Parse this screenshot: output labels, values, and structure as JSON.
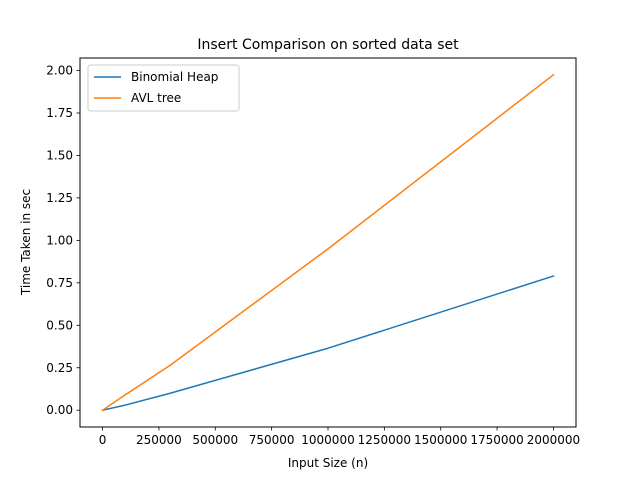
{
  "chart_data": {
    "type": "line",
    "title": "Insert Comparison on sorted data set",
    "xlabel": "Input Size (n)",
    "ylabel": "Time Taken in sec",
    "xlim": [
      -100000,
      2100000
    ],
    "ylim": [
      -0.0988,
      2.0737
    ],
    "x_ticks": [
      0,
      250000,
      500000,
      750000,
      1000000,
      1250000,
      1500000,
      1750000,
      2000000
    ],
    "x_tick_labels": [
      "0",
      "250000",
      "500000",
      "750000",
      "1000000",
      "1250000",
      "1500000",
      "1750000",
      "2000000"
    ],
    "y_ticks": [
      0.0,
      0.25,
      0.5,
      0.75,
      1.0,
      1.25,
      1.5,
      1.75,
      2.0
    ],
    "y_tick_labels": [
      "0.00",
      "0.25",
      "0.50",
      "0.75",
      "1.00",
      "1.25",
      "1.50",
      "1.75",
      "2.00"
    ],
    "grid": false,
    "legend_position": "upper-left",
    "series": [
      {
        "name": "Binomial Heap",
        "color": "#1f77b4",
        "x": [
          0,
          100000,
          300000,
          1000000,
          2000000
        ],
        "y": [
          0.0,
          0.03,
          0.1,
          0.365,
          0.79
        ]
      },
      {
        "name": "AVL tree",
        "color": "#ff7f0e",
        "x": [
          0,
          100000,
          300000,
          1000000,
          2000000
        ],
        "y": [
          0.0,
          0.09,
          0.265,
          0.95,
          1.975
        ]
      }
    ]
  }
}
